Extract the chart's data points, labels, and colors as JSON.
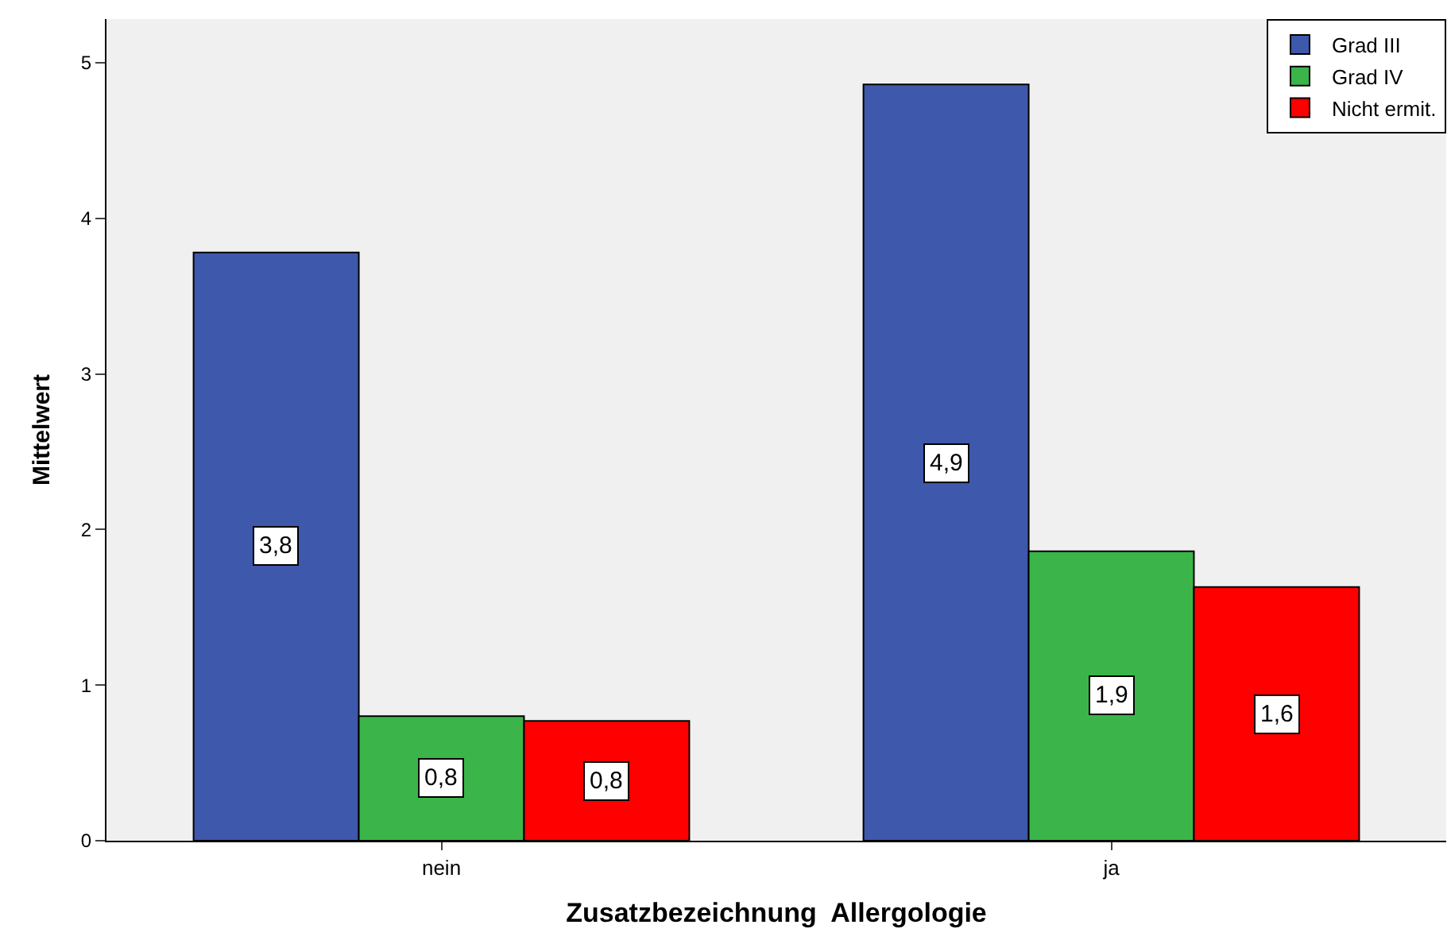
{
  "chart_data": {
    "type": "bar",
    "xlabel": "Zusatzbezeichnung  Allergologie",
    "ylabel": "Mittelwert",
    "categories": [
      "nein",
      "ja"
    ],
    "series": [
      {
        "name": "Grad III",
        "color": "#3e58ab",
        "values": [
          3.78,
          4.86
        ],
        "value_labels": [
          "3,8",
          "4,9"
        ]
      },
      {
        "name": "Grad IV",
        "color": "#3bb54a",
        "values": [
          0.8,
          1.86
        ],
        "value_labels": [
          "0,8",
          "1,9"
        ]
      },
      {
        "name": "Nicht ermit.",
        "color": "#fe0000",
        "values": [
          0.77,
          1.63
        ],
        "value_labels": [
          "0,8",
          "1,6"
        ]
      }
    ],
    "ylim": [
      0,
      5.28
    ],
    "yticks": [
      0,
      1,
      2,
      3,
      4,
      5
    ],
    "grid": false,
    "legend": "top right"
  }
}
